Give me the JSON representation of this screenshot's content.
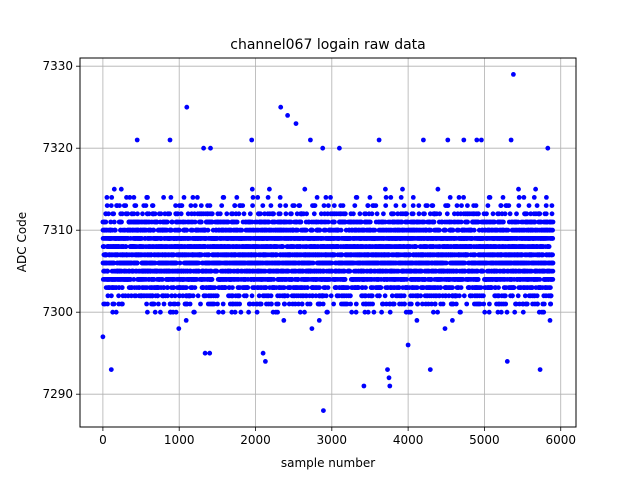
{
  "chart_data": {
    "type": "scatter",
    "title": "channel067 logain raw data",
    "xlabel": "sample number",
    "ylabel": "ADC Code",
    "xlim": [
      -300,
      6200
    ],
    "ylim": [
      7286,
      7331
    ],
    "x_ticks": [
      0,
      1000,
      2000,
      3000,
      4000,
      5000,
      6000
    ],
    "x_tick_labels": [
      "0",
      "1000",
      "2000",
      "3000",
      "4000",
      "5000",
      "6000"
    ],
    "y_ticks": [
      7290,
      7300,
      7310,
      7320,
      7330
    ],
    "y_tick_labels": [
      "7290",
      "7300",
      "7310",
      "7320",
      "7330"
    ],
    "grid": true,
    "marker_color": "#0000ff",
    "sample_count": 5900,
    "baseline": 7307,
    "band": [
      7299,
      7315
    ],
    "outliers": [
      {
        "x": 0,
        "y": 7297
      },
      {
        "x": 110,
        "y": 7293
      },
      {
        "x": 450,
        "y": 7321
      },
      {
        "x": 880,
        "y": 7321
      },
      {
        "x": 1100,
        "y": 7325
      },
      {
        "x": 1320,
        "y": 7320
      },
      {
        "x": 1410,
        "y": 7320
      },
      {
        "x": 1340,
        "y": 7295
      },
      {
        "x": 1400,
        "y": 7295
      },
      {
        "x": 1950,
        "y": 7321
      },
      {
        "x": 2100,
        "y": 7295
      },
      {
        "x": 2130,
        "y": 7294
      },
      {
        "x": 2330,
        "y": 7325
      },
      {
        "x": 2420,
        "y": 7324
      },
      {
        "x": 2530,
        "y": 7323
      },
      {
        "x": 2720,
        "y": 7321
      },
      {
        "x": 2880,
        "y": 7320
      },
      {
        "x": 2890,
        "y": 7288
      },
      {
        "x": 3100,
        "y": 7320
      },
      {
        "x": 3420,
        "y": 7291
      },
      {
        "x": 3620,
        "y": 7321
      },
      {
        "x": 3730,
        "y": 7293
      },
      {
        "x": 3750,
        "y": 7292
      },
      {
        "x": 3760,
        "y": 7291
      },
      {
        "x": 4000,
        "y": 7296
      },
      {
        "x": 4200,
        "y": 7321
      },
      {
        "x": 4290,
        "y": 7293
      },
      {
        "x": 4520,
        "y": 7321
      },
      {
        "x": 4730,
        "y": 7321
      },
      {
        "x": 4900,
        "y": 7321
      },
      {
        "x": 4960,
        "y": 7321
      },
      {
        "x": 5300,
        "y": 7294
      },
      {
        "x": 5350,
        "y": 7321
      },
      {
        "x": 5380,
        "y": 7329
      },
      {
        "x": 5730,
        "y": 7293
      },
      {
        "x": 5830,
        "y": 7320
      }
    ]
  }
}
